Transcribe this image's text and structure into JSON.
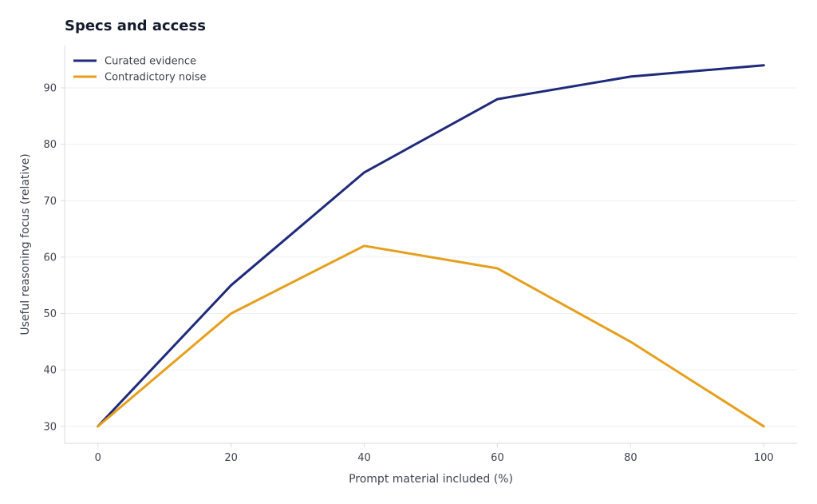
{
  "chart_data": {
    "type": "line",
    "title": "Specs and access",
    "xlabel": "Prompt material included (%)",
    "ylabel": "Useful reasoning focus (relative)",
    "x": [
      0,
      20,
      40,
      60,
      80,
      100
    ],
    "xticks": [
      0,
      20,
      40,
      60,
      80,
      100
    ],
    "yticks": [
      30,
      40,
      50,
      60,
      70,
      80,
      90
    ],
    "xlim": [
      -5,
      105
    ],
    "ylim": [
      27,
      97.5
    ],
    "grid": "horizontal",
    "legend_position": "top-left",
    "series": [
      {
        "name": "Curated evidence",
        "color": "#1f2a7a",
        "values": [
          30,
          55,
          75,
          88,
          92,
          94
        ]
      },
      {
        "name": "Contradictory noise",
        "color": "#e69f1c",
        "values": [
          30,
          50,
          62,
          58,
          45,
          30
        ]
      }
    ]
  }
}
